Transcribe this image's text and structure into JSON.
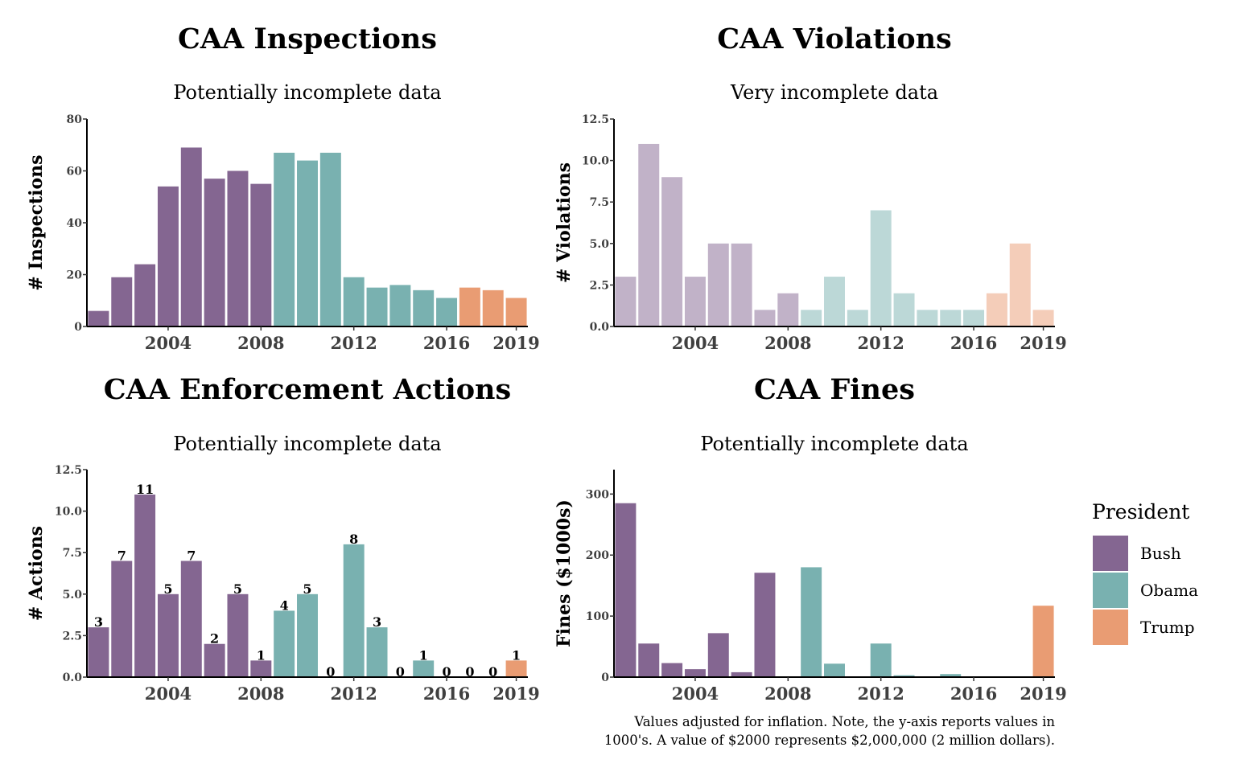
{
  "chart_data": [
    {
      "type": "bar",
      "title": "CAA Inspections",
      "subtitle": "Potentially incomplete data",
      "ylabel": "# Inspections",
      "xlabel": "",
      "x": [
        2001,
        2002,
        2003,
        2004,
        2005,
        2006,
        2007,
        2008,
        2009,
        2010,
        2011,
        2012,
        2013,
        2014,
        2015,
        2016,
        2017,
        2018,
        2019
      ],
      "values": [
        6,
        19,
        24,
        54,
        69,
        57,
        60,
        55,
        67,
        64,
        67,
        19,
        15,
        16,
        14,
        11,
        15,
        14,
        11
      ],
      "president": [
        "Bush",
        "Bush",
        "Bush",
        "Bush",
        "Bush",
        "Bush",
        "Bush",
        "Bush",
        "Obama",
        "Obama",
        "Obama",
        "Obama",
        "Obama",
        "Obama",
        "Obama",
        "Obama",
        "Trump",
        "Trump",
        "Trump"
      ],
      "xticks": [
        "2004",
        "2008",
        "2012",
        "2016",
        "2019"
      ],
      "yticks": [
        "0",
        "20",
        "40",
        "60",
        "80"
      ],
      "ylim": [
        0,
        80
      ],
      "opacity": 1,
      "data_labels": false
    },
    {
      "type": "bar",
      "title": "CAA Violations",
      "subtitle": "Very incomplete data",
      "ylabel": "# Violations",
      "xlabel": "",
      "x": [
        2001,
        2002,
        2003,
        2004,
        2005,
        2006,
        2007,
        2008,
        2009,
        2010,
        2011,
        2012,
        2013,
        2014,
        2015,
        2016,
        2017,
        2018,
        2019
      ],
      "values": [
        3,
        11,
        9,
        3,
        5,
        5,
        1,
        2,
        1,
        3,
        1,
        7,
        2,
        1,
        1,
        1,
        2,
        5,
        1
      ],
      "president": [
        "Bush",
        "Bush",
        "Bush",
        "Bush",
        "Bush",
        "Bush",
        "Bush",
        "Bush",
        "Obama",
        "Obama",
        "Obama",
        "Obama",
        "Obama",
        "Obama",
        "Obama",
        "Obama",
        "Trump",
        "Trump",
        "Trump"
      ],
      "xticks": [
        "2004",
        "2008",
        "2012",
        "2016",
        "2019"
      ],
      "yticks": [
        "0.0",
        "2.5",
        "5.0",
        "7.5",
        "10.0",
        "12.5"
      ],
      "ylim": [
        0,
        12.5
      ],
      "opacity": 0.5,
      "data_labels": false
    },
    {
      "type": "bar",
      "title": "CAA Enforcement Actions",
      "subtitle": "Potentially incomplete data",
      "ylabel": "# Actions",
      "xlabel": "",
      "x": [
        2001,
        2002,
        2003,
        2004,
        2005,
        2006,
        2007,
        2008,
        2009,
        2010,
        2011,
        2012,
        2013,
        2014,
        2015,
        2016,
        2017,
        2018,
        2019
      ],
      "values": [
        3,
        7,
        11,
        5,
        7,
        2,
        5,
        1,
        4,
        5,
        0,
        8,
        3,
        0,
        1,
        0,
        0,
        0,
        1
      ],
      "president": [
        "Bush",
        "Bush",
        "Bush",
        "Bush",
        "Bush",
        "Bush",
        "Bush",
        "Bush",
        "Obama",
        "Obama",
        "Obama",
        "Obama",
        "Obama",
        "Obama",
        "Obama",
        "Obama",
        "Trump",
        "Trump",
        "Trump"
      ],
      "xticks": [
        "2004",
        "2008",
        "2012",
        "2016",
        "2019"
      ],
      "yticks": [
        "0.0",
        "2.5",
        "5.0",
        "7.5",
        "10.0",
        "12.5"
      ],
      "ylim": [
        0,
        12.5
      ],
      "opacity": 1,
      "data_labels": true
    },
    {
      "type": "bar",
      "title": "CAA Fines",
      "subtitle": "Potentially incomplete data",
      "ylabel": "Fines ($1000s)",
      "xlabel": "",
      "x": [
        2001,
        2002,
        2003,
        2004,
        2005,
        2006,
        2007,
        2008,
        2009,
        2010,
        2011,
        2012,
        2013,
        2014,
        2015,
        2016,
        2017,
        2018,
        2019
      ],
      "values": [
        285,
        55,
        23,
        13,
        72,
        8,
        171,
        0,
        180,
        22,
        0,
        55,
        3,
        0,
        5,
        0,
        0,
        0,
        117
      ],
      "president": [
        "Bush",
        "Bush",
        "Bush",
        "Bush",
        "Bush",
        "Bush",
        "Bush",
        "Bush",
        "Obama",
        "Obama",
        "Obama",
        "Obama",
        "Obama",
        "Obama",
        "Obama",
        "Obama",
        "Trump",
        "Trump",
        "Trump"
      ],
      "xticks": [
        "2004",
        "2008",
        "2012",
        "2016",
        "2019"
      ],
      "yticks": [
        "0",
        "100",
        "200",
        "300"
      ],
      "ylim": [
        0,
        340
      ],
      "opacity": 1,
      "data_labels": false,
      "caption": [
        "Values adjusted for inflation. Note, the y-axis reports values in",
        "1000's. A value of $2000 represents $2,000,000 (2 million dollars)."
      ]
    }
  ],
  "legend": {
    "title": "President",
    "items": [
      {
        "label": "Bush",
        "color": "#846691"
      },
      {
        "label": "Obama",
        "color": "#79b1b0"
      },
      {
        "label": "Trump",
        "color": "#e99c73"
      }
    ]
  },
  "colors": {
    "Bush": "#846691",
    "Obama": "#79b1b0",
    "Trump": "#e99c73"
  }
}
